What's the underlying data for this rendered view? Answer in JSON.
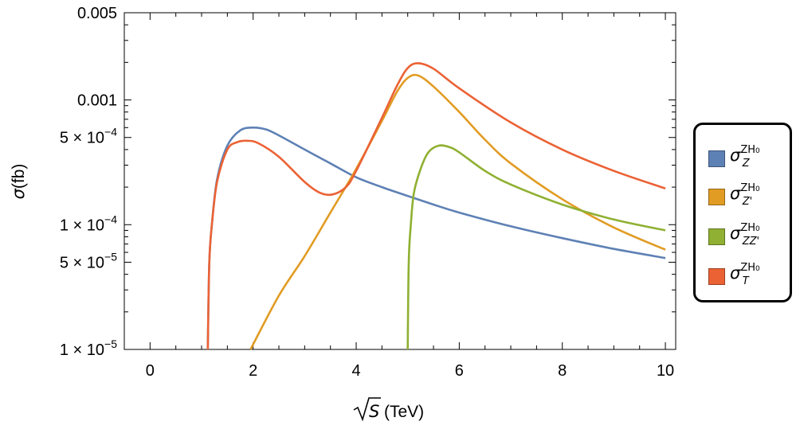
{
  "chart_data": {
    "type": "line",
    "title": "",
    "xlabel": {
      "root": "S",
      "unit": "(TeV)"
    },
    "ylabel": {
      "symbol": "σ",
      "unit": "(fb)"
    },
    "xlim": [
      -0.5,
      10.2
    ],
    "ylim": [
      1e-05,
      0.005
    ],
    "yscale": "log",
    "grid": false,
    "legend_position": "right",
    "x_ticks": [
      {
        "value": 0,
        "label": "0"
      },
      {
        "value": 2,
        "label": "2"
      },
      {
        "value": 4,
        "label": "4"
      },
      {
        "value": 6,
        "label": "6"
      },
      {
        "value": 8,
        "label": "8"
      },
      {
        "value": 10,
        "label": "10"
      }
    ],
    "y_ticks": [
      {
        "value": 0.005,
        "label": "0.005",
        "mantissa": "",
        "exponent": ""
      },
      {
        "value": 0.001,
        "label": "0.001",
        "mantissa": "",
        "exponent": ""
      },
      {
        "value": 0.0005,
        "label": "",
        "mantissa": "5 × 10",
        "exponent": "−4"
      },
      {
        "value": 0.0001,
        "label": "",
        "mantissa": "1 × 10",
        "exponent": "−4"
      },
      {
        "value": 5e-05,
        "label": "",
        "mantissa": "5 × 10",
        "exponent": "−5"
      },
      {
        "value": 1e-05,
        "label": "",
        "mantissa": "1 × 10",
        "exponent": "−5"
      }
    ],
    "series": [
      {
        "legend": {
          "symbol": "σ",
          "sub": "Z",
          "sup": "ZH",
          "sup_sub": "0"
        },
        "color": "#5E81B5",
        "x": [
          1.12,
          1.15,
          1.2,
          1.3,
          1.5,
          1.75,
          2.0,
          2.25,
          2.5,
          3.0,
          3.5,
          4.0,
          4.5,
          5.0,
          5.5,
          6.0,
          7.0,
          8.0,
          9.0,
          10.0
        ],
        "y": [
          1e-05,
          5e-05,
          0.0001,
          0.00023,
          0.00043,
          0.00057,
          0.0006,
          0.00058,
          0.00052,
          0.0004,
          0.00031,
          0.00024,
          0.0002,
          0.00017,
          0.000145,
          0.000125,
          9.7e-05,
          7.8e-05,
          6.4e-05,
          5.4e-05
        ]
      },
      {
        "legend": {
          "symbol": "σ",
          "sub": "Z'",
          "sup": "ZH",
          "sup_sub": "0"
        },
        "color": "#E19C24",
        "x": [
          1.95,
          2.5,
          3.0,
          3.5,
          4.0,
          4.5,
          4.8,
          5.0,
          5.2,
          5.5,
          6.0,
          6.5,
          7.0,
          8.0,
          9.0,
          10.0
        ],
        "y": [
          1e-05,
          2.7e-05,
          5.6e-05,
          0.000125,
          0.00028,
          0.00068,
          0.00118,
          0.0015,
          0.00157,
          0.00128,
          0.0008,
          0.00048,
          0.00031,
          0.00016,
          9.5e-05,
          6.3e-05
        ]
      },
      {
        "legend": {
          "symbol": "σ",
          "sub": "ZZ'",
          "sup": "ZH",
          "sup_sub": "0"
        },
        "color": "#8FB032",
        "x": [
          5.0,
          5.02,
          5.06,
          5.12,
          5.25,
          5.4,
          5.6,
          5.8,
          6.0,
          6.5,
          7.0,
          8.0,
          9.0,
          10.0
        ],
        "y": [
          1e-05,
          5e-05,
          0.0001,
          0.00018,
          0.00028,
          0.00038,
          0.00043,
          0.00042,
          0.00038,
          0.00027,
          0.00021,
          0.000145,
          0.00011,
          9e-05
        ]
      },
      {
        "legend": {
          "symbol": "σ",
          "sub": "T",
          "sup": "ZH",
          "sup_sub": "0"
        },
        "color": "#EB6235",
        "x": [
          1.12,
          1.15,
          1.2,
          1.3,
          1.5,
          1.7,
          1.9,
          2.1,
          2.5,
          3.0,
          3.3,
          3.55,
          3.8,
          4.0,
          4.5,
          4.8,
          5.0,
          5.2,
          5.5,
          6.0,
          7.0,
          8.0,
          9.0,
          10.0
        ],
        "y": [
          1e-05,
          5e-05,
          0.0001,
          0.00022,
          0.0004,
          0.00046,
          0.00047,
          0.00045,
          0.00035,
          0.00022,
          0.00018,
          0.000175,
          0.0002,
          0.00027,
          0.00072,
          0.00132,
          0.0018,
          0.00197,
          0.00178,
          0.00124,
          0.00066,
          0.0004,
          0.00027,
          0.000195
        ]
      }
    ]
  }
}
